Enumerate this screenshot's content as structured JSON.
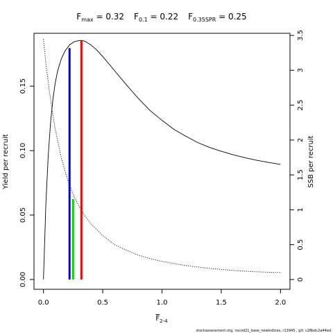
{
  "title": {
    "parts": [
      {
        "main": "F",
        "sub": "max",
        "value": " = 0.32"
      },
      {
        "main": "F",
        "sub": "0.1",
        "value": " = 0.22"
      },
      {
        "main": "F",
        "sub": "0.35SPR",
        "value": " = 0.25"
      }
    ]
  },
  "footer": "stockassessment.org, nscod21_base_newindices, r13945 , git: c28bdc2a44ad",
  "chart_data": {
    "type": "line",
    "xlabel": {
      "main": "F",
      "bar": true,
      "sub": "2-4"
    },
    "ylabel": "Yield per recruit",
    "y2label": "SSB per recruit",
    "xlim": [
      -0.08,
      2.08
    ],
    "ylim": [
      -0.0076,
      0.191
    ],
    "y2lim": [
      -0.14,
      3.53
    ],
    "xticks": [
      0.0,
      0.5,
      1.0,
      1.5,
      2.0
    ],
    "xtick_labels": [
      "0.0",
      "0.5",
      "1.0",
      "1.5",
      "2.0"
    ],
    "yticks": [
      0.0,
      0.05,
      0.1,
      0.15
    ],
    "ytick_labels": [
      "0.00",
      "0.05",
      "0.10",
      "0.15"
    ],
    "y2ticks": [
      0,
      0.5,
      1,
      1.5,
      2,
      2.5,
      3,
      3.5
    ],
    "y2tick_labels": [
      "0",
      "0.5",
      "1",
      "1.5",
      "2",
      "2.5",
      "3",
      "3.5"
    ],
    "series": [
      {
        "axis": "left",
        "style": "solid",
        "color": "#000000",
        "x": [
          0.0,
          0.02,
          0.04,
          0.06,
          0.08,
          0.1,
          0.12,
          0.15,
          0.18,
          0.22,
          0.26,
          0.3,
          0.32,
          0.35,
          0.4,
          0.45,
          0.5,
          0.6,
          0.7,
          0.8,
          0.9,
          1.0,
          1.1,
          1.2,
          1.3,
          1.4,
          1.5,
          1.6,
          1.7,
          1.8,
          1.9,
          2.0
        ],
        "y": [
          0.0,
          0.058,
          0.096,
          0.122,
          0.14,
          0.153,
          0.162,
          0.171,
          0.177,
          0.182,
          0.1845,
          0.1853,
          0.1855,
          0.1848,
          0.182,
          0.178,
          0.173,
          0.162,
          0.151,
          0.1405,
          0.131,
          0.1235,
          0.1165,
          0.1112,
          0.1063,
          0.1025,
          0.0995,
          0.0968,
          0.0945,
          0.0925,
          0.0908,
          0.0893
        ]
      },
      {
        "axis": "right",
        "style": "dotted",
        "color": "#000000",
        "x": [
          0.0,
          0.02,
          0.05,
          0.08,
          0.1,
          0.15,
          0.2,
          0.25,
          0.3,
          0.35,
          0.4,
          0.5,
          0.6,
          0.7,
          0.8,
          0.9,
          1.0,
          1.2,
          1.4,
          1.6,
          1.8,
          2.0
        ],
        "y": [
          3.45,
          3.1,
          2.7,
          2.35,
          2.15,
          1.75,
          1.45,
          1.22,
          1.05,
          0.91,
          0.8,
          0.63,
          0.5,
          0.42,
          0.35,
          0.3,
          0.26,
          0.2,
          0.16,
          0.13,
          0.11,
          0.1
        ]
      }
    ],
    "reference_lines": [
      {
        "x": 0.22,
        "y": 0.1795,
        "color": "#0000ff"
      },
      {
        "x": 0.25,
        "y": 0.0625,
        "color": "#00dd00"
      },
      {
        "x": 0.32,
        "y": 0.1855,
        "color": "#ff0000"
      }
    ]
  }
}
